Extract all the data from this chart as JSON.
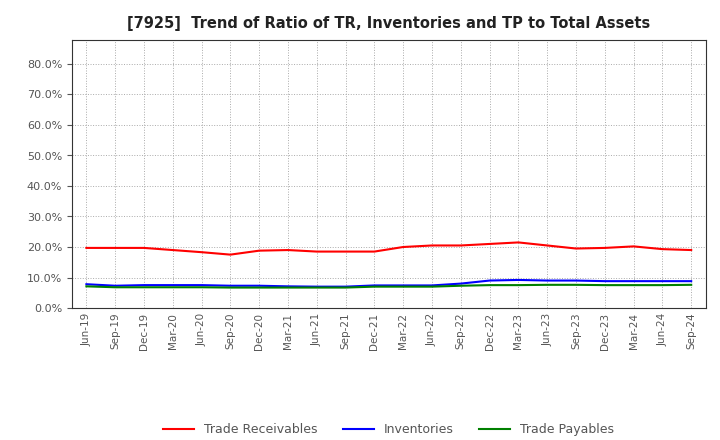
{
  "title": "[7925]  Trend of Ratio of TR, Inventories and TP to Total Assets",
  "x_labels": [
    "Jun-19",
    "Sep-19",
    "Dec-19",
    "Mar-20",
    "Jun-20",
    "Sep-20",
    "Dec-20",
    "Mar-21",
    "Jun-21",
    "Sep-21",
    "Dec-21",
    "Mar-22",
    "Jun-22",
    "Sep-22",
    "Dec-22",
    "Mar-23",
    "Jun-23",
    "Sep-23",
    "Dec-23",
    "Mar-24",
    "Jun-24",
    "Sep-24"
  ],
  "trade_receivables": [
    0.197,
    0.197,
    0.197,
    0.19,
    0.183,
    0.175,
    0.188,
    0.19,
    0.185,
    0.185,
    0.185,
    0.2,
    0.205,
    0.205,
    0.21,
    0.215,
    0.205,
    0.195,
    0.197,
    0.202,
    0.193,
    0.19
  ],
  "inventories": [
    0.078,
    0.073,
    0.075,
    0.075,
    0.075,
    0.073,
    0.073,
    0.071,
    0.07,
    0.07,
    0.074,
    0.074,
    0.074,
    0.08,
    0.09,
    0.092,
    0.09,
    0.09,
    0.088,
    0.088,
    0.088,
    0.088
  ],
  "trade_payables": [
    0.071,
    0.068,
    0.068,
    0.068,
    0.068,
    0.067,
    0.067,
    0.067,
    0.067,
    0.067,
    0.07,
    0.07,
    0.07,
    0.073,
    0.075,
    0.075,
    0.076,
    0.076,
    0.075,
    0.075,
    0.075,
    0.076
  ],
  "tr_color": "#FF0000",
  "inv_color": "#0000FF",
  "tp_color": "#008000",
  "background_color": "#FFFFFF",
  "grid_color": "#AAAAAA",
  "ylim": [
    0.0,
    0.88
  ],
  "yticks": [
    0.0,
    0.1,
    0.2,
    0.3,
    0.4,
    0.5,
    0.6,
    0.7,
    0.8
  ],
  "legend_labels": [
    "Trade Receivables",
    "Inventories",
    "Trade Payables"
  ]
}
